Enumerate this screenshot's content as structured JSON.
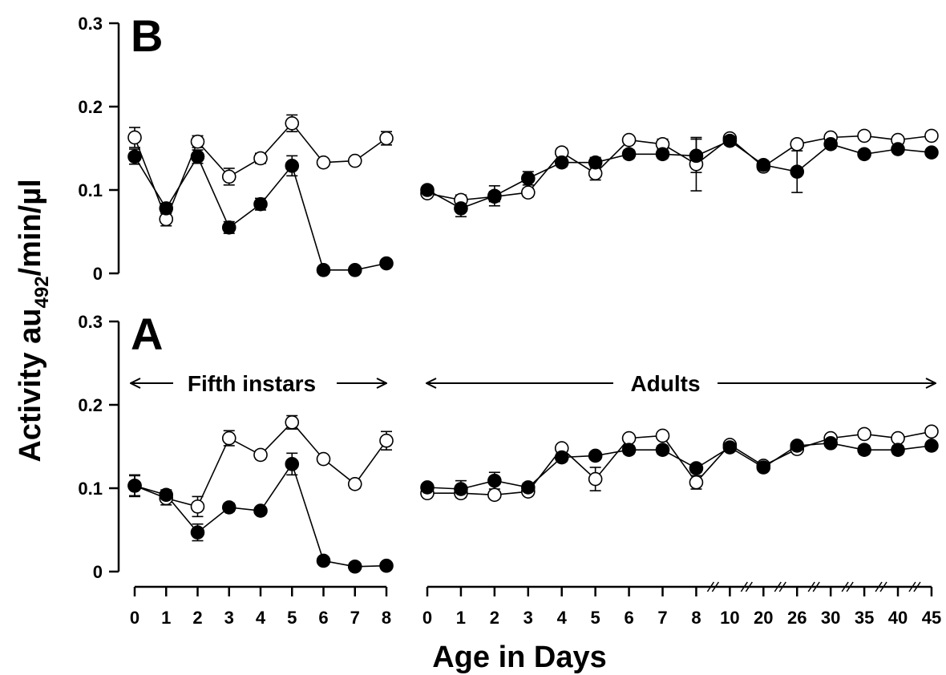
{
  "chart_data": [
    {
      "type": "line",
      "panel_label": "B",
      "ylim": [
        0,
        0.3
      ],
      "yticks": [
        "0",
        "0.1",
        "0.2",
        "0.3"
      ],
      "groups": [
        {
          "name": "Fifth instars",
          "x": [
            "0",
            "1",
            "2",
            "3",
            "4",
            "5",
            "6",
            "7",
            "8"
          ],
          "series": [
            {
              "marker": "open-circle",
              "values": [
                0.163,
                0.065,
                0.158,
                0.116,
                0.138,
                0.18,
                0.133,
                0.135,
                0.162
              ],
              "errors": [
                0.012,
                0.008,
                0.007,
                0.01,
                0.006,
                0.01,
                0.004,
                0.003,
                0.008
              ]
            },
            {
              "marker": "filled-circle",
              "values": [
                0.14,
                0.078,
                0.14,
                0.055,
                0.083,
                0.129,
                0.004,
                0.004,
                0.012
              ],
              "errors": [
                0.009,
                0.006,
                0.008,
                0.007,
                0.007,
                0.012,
                0.002,
                0.002,
                0.003
              ]
            }
          ]
        },
        {
          "name": "Adults",
          "x": [
            "0",
            "1",
            "2",
            "3",
            "4",
            "5",
            "6",
            "7",
            "8",
            "10",
            "20",
            "26",
            "30",
            "35",
            "40",
            "45"
          ],
          "series": [
            {
              "marker": "open-circle",
              "values": [
                0.096,
                0.088,
                0.092,
                0.097,
                0.145,
                0.12,
                0.16,
                0.155,
                0.131,
                0.162,
                0.128,
                0.155,
                0.163,
                0.165,
                0.16,
                0.165
              ],
              "errors": [
                0.004,
                0.006,
                0.006,
                0.005,
                0.005,
                0.008,
                0.004,
                0.006,
                0.032,
                0.004,
                0.004,
                0.005,
                0.004,
                0.003,
                0.004,
                0.004
              ]
            },
            {
              "marker": "filled-circle",
              "values": [
                0.1,
                0.078,
                0.093,
                0.114,
                0.133,
                0.133,
                0.143,
                0.143,
                0.141,
                0.159,
                0.13,
                0.122,
                0.155,
                0.143,
                0.149,
                0.145
              ],
              "errors": [
                0.004,
                0.01,
                0.012,
                0.008,
                0.005,
                0.006,
                0.005,
                0.005,
                0.02,
                0.005,
                0.005,
                0.025,
                0.005,
                0.004,
                0.004,
                0.004
              ]
            }
          ]
        }
      ]
    },
    {
      "type": "line",
      "panel_label": "A",
      "ylim": [
        0,
        0.3
      ],
      "yticks": [
        "0",
        "0.1",
        "0.2",
        "0.3"
      ],
      "groups": [
        {
          "name": "Fifth instars",
          "x": [
            "0",
            "1",
            "2",
            "3",
            "4",
            "5",
            "6",
            "7",
            "8"
          ],
          "series": [
            {
              "marker": "open-circle",
              "values": [
                0.103,
                0.088,
                0.078,
                0.16,
                0.14,
                0.179,
                0.135,
                0.105,
                0.157
              ],
              "errors": [
                0.012,
                0.008,
                0.012,
                0.009,
                0.005,
                0.008,
                0.004,
                0.005,
                0.011
              ]
            },
            {
              "marker": "filled-circle",
              "values": [
                0.103,
                0.092,
                0.047,
                0.077,
                0.073,
                0.129,
                0.013,
                0.006,
                0.007
              ],
              "errors": [
                0.013,
                0.006,
                0.01,
                0.005,
                0.004,
                0.013,
                0.004,
                0.002,
                0.002
              ]
            }
          ]
        },
        {
          "name": "Adults",
          "x": [
            "0",
            "1",
            "2",
            "3",
            "4",
            "5",
            "6",
            "7",
            "8",
            "10",
            "20",
            "26",
            "30",
            "35",
            "40",
            "45"
          ],
          "series": [
            {
              "marker": "open-circle",
              "values": [
                0.094,
                0.094,
                0.092,
                0.096,
                0.148,
                0.111,
                0.16,
                0.163,
                0.107,
                0.152,
                0.127,
                0.147,
                0.16,
                0.165,
                0.16,
                0.168
              ],
              "errors": [
                0.004,
                0.004,
                0.004,
                0.004,
                0.004,
                0.014,
                0.004,
                0.004,
                0.008,
                0.004,
                0.003,
                0.004,
                0.004,
                0.004,
                0.004,
                0.004
              ]
            },
            {
              "marker": "filled-circle",
              "values": [
                0.101,
                0.099,
                0.109,
                0.101,
                0.137,
                0.139,
                0.146,
                0.146,
                0.124,
                0.149,
                0.125,
                0.151,
                0.154,
                0.146,
                0.146,
                0.151
              ],
              "errors": [
                0.004,
                0.01,
                0.01,
                0.005,
                0.005,
                0.004,
                0.005,
                0.005,
                0.005,
                0.005,
                0.004,
                0.004,
                0.004,
                0.005,
                0.005,
                0.004
              ]
            }
          ]
        }
      ]
    }
  ],
  "ylabel_main": "Activity au",
  "ylabel_sub": "492",
  "ylabel_tail": "/min/µl",
  "xlabel": "Age in Days",
  "annotation_fifth": "Fifth instars",
  "annotation_adults": "Adults"
}
